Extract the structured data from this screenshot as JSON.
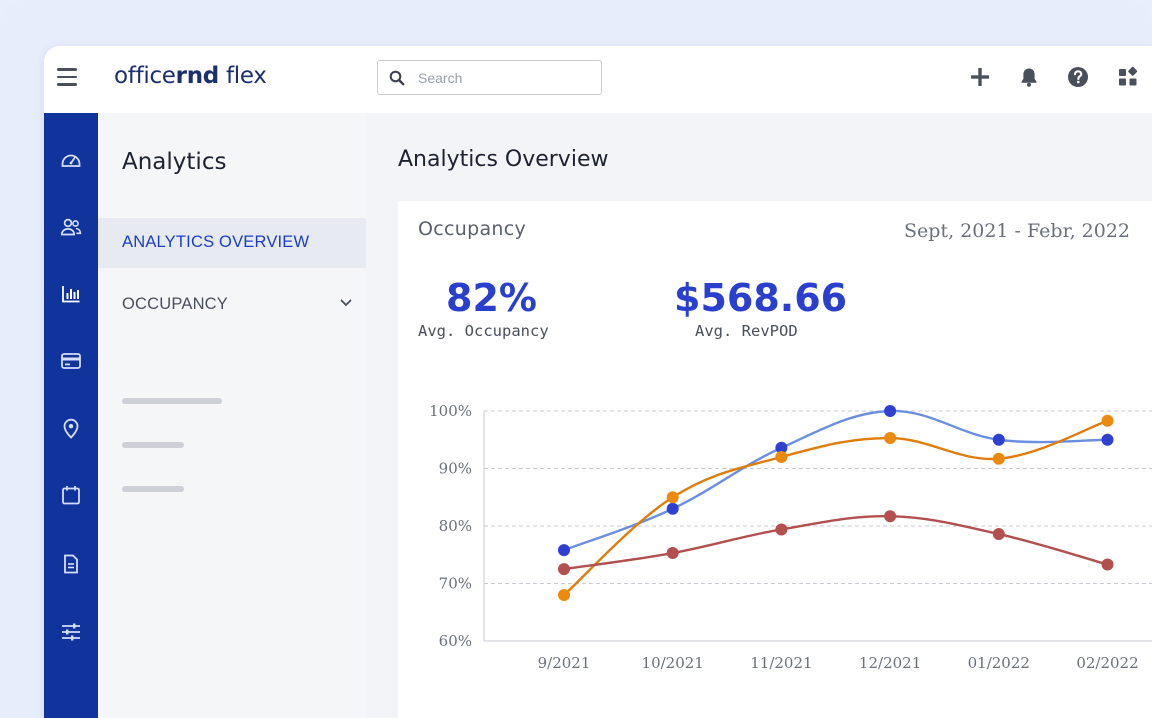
{
  "app": {
    "logo_left": "office",
    "logo_bold": "rnd",
    "logo_right": " flex"
  },
  "search": {
    "placeholder": "Search",
    "value": ""
  },
  "header_icons": [
    "plus-icon",
    "bell-icon",
    "help-icon",
    "apps-icon"
  ],
  "rail_icons": [
    "dashboard-icon",
    "members-icon",
    "analytics-icon",
    "billing-icon",
    "location-icon",
    "calendar-icon",
    "document-icon",
    "settings-sliders-icon"
  ],
  "sidebar": {
    "title": "Analytics",
    "items": [
      {
        "label": "ANALYTICS OVERVIEW",
        "active": true
      },
      {
        "label": "OCCUPANCY",
        "active": false
      }
    ]
  },
  "main": {
    "title": "Analytics Overview",
    "panel": {
      "title": "Occupancy",
      "date_range": "Sept, 2021 - Febr, 2022",
      "kpis": [
        {
          "value": "82%",
          "label": "Avg. Occupancy"
        },
        {
          "value": "$568.66",
          "label": "Avg. RevPOD"
        }
      ]
    }
  },
  "colors": {
    "rail": "#11339c",
    "accent": "#1b3fc4",
    "kpi": "#2a3fce"
  },
  "chart_data": {
    "type": "line",
    "categories": [
      "9/2021",
      "10/2021",
      "11/2021",
      "12/2021",
      "01/2022",
      "02/2022"
    ],
    "y_ticks": [
      "100%",
      "90%",
      "80%",
      "70%",
      "60%"
    ],
    "ylim": [
      60,
      100
    ],
    "grid": true,
    "series": [
      {
        "color": "#6b8fe0",
        "dot": "#2f3fd2",
        "values": [
          75.8,
          83.0,
          93.6,
          100.0,
          95.0,
          95.0
        ]
      },
      {
        "color": "#e07c0a",
        "dot": "#ec8a10",
        "values": [
          68.0,
          85.0,
          92.0,
          95.3,
          91.7,
          98.3
        ]
      },
      {
        "color": "#b34f4f",
        "dot": "#b34f4f",
        "values": [
          72.5,
          75.3,
          79.4,
          81.7,
          78.6,
          73.3
        ]
      }
    ]
  }
}
